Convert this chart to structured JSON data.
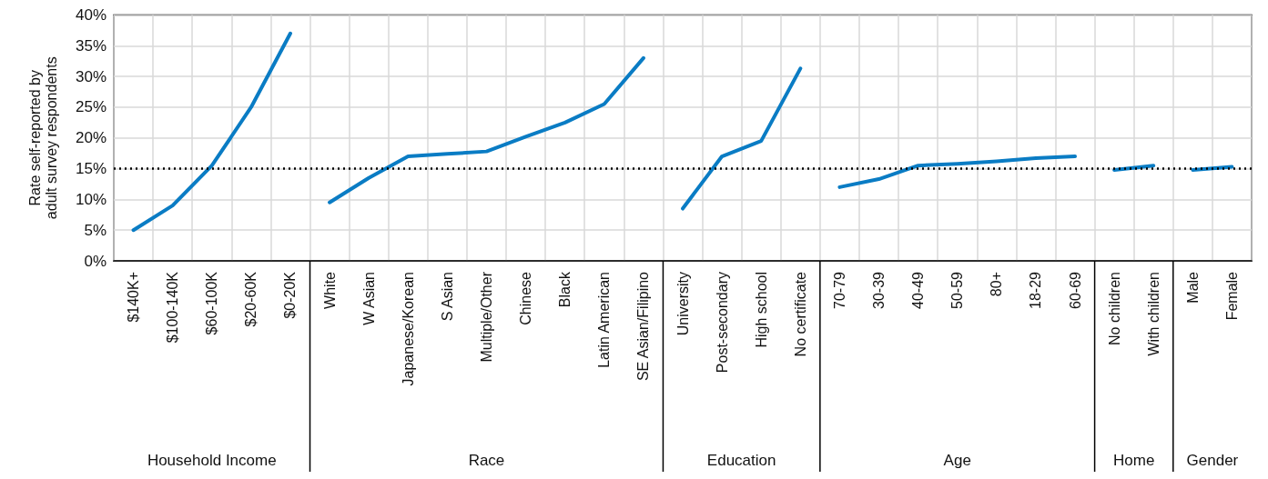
{
  "chart_data": {
    "type": "line",
    "ylabel": "Rate self-reported by adult survey respondents",
    "categories": [
      "$140K+",
      "$100-140K",
      "$60-100K",
      "$20-60K",
      "$0-20K",
      "White",
      "W Asian",
      "Japanese/Korean",
      "S Asian",
      "Multiple/Other",
      "Chinese",
      "Black",
      "Latin American",
      "SE Asian/Filipino",
      "University",
      "Post-secondary",
      "High school",
      "No certificate",
      "70-79",
      "30-39",
      "40-49",
      "50-59",
      "80+",
      "18-29",
      "60-69",
      "No children",
      "With children",
      "Male",
      "Female"
    ],
    "series": [
      {
        "color": "#0a7cc4",
        "values": [
          5,
          9,
          15.5,
          25,
          37,
          null,
          null,
          null,
          null,
          null,
          null,
          null,
          null,
          null,
          null,
          null,
          null,
          null,
          null,
          null,
          null,
          null,
          null,
          null,
          null,
          null,
          null,
          null,
          null
        ]
      },
      {
        "color": "#0a7cc4",
        "values": [
          null,
          null,
          null,
          null,
          null,
          9.5,
          13.5,
          17,
          17.4,
          17.8,
          20.2,
          22.5,
          25.5,
          33,
          null,
          null,
          null,
          null,
          null,
          null,
          null,
          null,
          null,
          null,
          null,
          null,
          null,
          null,
          null
        ]
      },
      {
        "color": "#0a7cc4",
        "values": [
          null,
          null,
          null,
          null,
          null,
          null,
          null,
          null,
          null,
          null,
          null,
          null,
          null,
          null,
          8.5,
          17,
          19.5,
          31.3,
          null,
          null,
          null,
          null,
          null,
          null,
          null,
          null,
          null,
          null,
          null
        ]
      },
      {
        "color": "#0a7cc4",
        "values": [
          null,
          null,
          null,
          null,
          null,
          null,
          null,
          null,
          null,
          null,
          null,
          null,
          null,
          null,
          null,
          null,
          null,
          null,
          12,
          13.3,
          15.5,
          15.8,
          16.2,
          16.7,
          17,
          null,
          null,
          null,
          null
        ]
      },
      {
        "color": "#0a7cc4",
        "values": [
          null,
          null,
          null,
          null,
          null,
          null,
          null,
          null,
          null,
          null,
          null,
          null,
          null,
          null,
          null,
          null,
          null,
          null,
          null,
          null,
          null,
          null,
          null,
          null,
          null,
          14.8,
          15.5,
          null,
          null
        ]
      },
      {
        "color": "#0a7cc4",
        "values": [
          null,
          null,
          null,
          null,
          null,
          null,
          null,
          null,
          null,
          null,
          null,
          null,
          null,
          null,
          null,
          null,
          null,
          null,
          null,
          null,
          null,
          null,
          null,
          null,
          null,
          null,
          null,
          14.8,
          15.3
        ]
      }
    ],
    "annotations": [
      "Household Income",
      "Race",
      "Education",
      "Age",
      "Home",
      "Gender"
    ],
    "ylim": [
      0,
      40
    ],
    "yticks": [
      {
        "value": 0,
        "label": "0%"
      },
      {
        "value": 5,
        "label": "5%"
      },
      {
        "value": 10,
        "label": "10%"
      },
      {
        "value": 15,
        "label": "15%"
      },
      {
        "value": 20,
        "label": "20%"
      },
      {
        "value": 25,
        "label": "25%"
      },
      {
        "value": 30,
        "label": "30%"
      },
      {
        "value": 35,
        "label": "35%"
      },
      {
        "value": 40,
        "label": "40%"
      }
    ],
    "ref_lines": [
      {
        "axis": "y",
        "value": 15,
        "color": "#000000",
        "line_style": "dotted"
      }
    ],
    "grid": true,
    "marker": "none",
    "line_style": "solid"
  }
}
